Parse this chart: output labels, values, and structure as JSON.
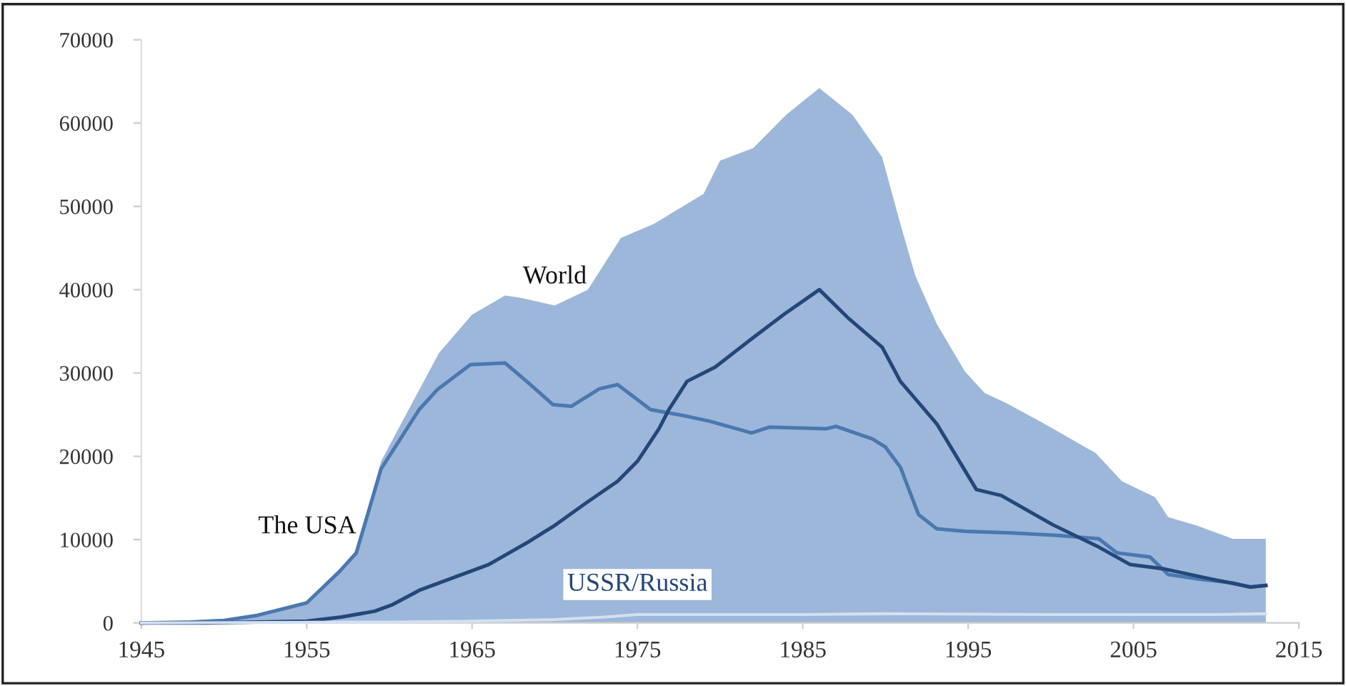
{
  "chart_data": {
    "type": "line",
    "xlim": [
      1945,
      2015
    ],
    "xticks": [
      1945,
      1955,
      1965,
      1975,
      1985,
      1995,
      2005,
      2015
    ],
    "ylim": [
      0,
      70000
    ],
    "yticks": [
      0,
      10000,
      20000,
      30000,
      40000,
      50000,
      60000,
      70000
    ],
    "grid": false,
    "legend": false,
    "marker": "none",
    "line_style": "solid",
    "series": [
      {
        "name": "World",
        "type": "area",
        "color": "#9db7da",
        "x": [
          1945,
          1948,
          1950,
          1952,
          1955,
          1957,
          1958,
          1959.5,
          1961,
          1963,
          1965,
          1967,
          1968,
          1970,
          1972,
          1974,
          1976,
          1978,
          1979,
          1980,
          1982,
          1984,
          1986,
          1988,
          1989.8,
          1990.9,
          1991.8,
          1993.1,
          1994.8,
          1996,
          1997.3,
          1999.8,
          2002.7,
          2004.3,
          2006.3,
          2007.1,
          2008.8,
          2011,
          2013
        ],
        "values": [
          0,
          100,
          300,
          900,
          2400,
          6200,
          8400,
          19400,
          25000,
          32400,
          37000,
          39300,
          39000,
          38100,
          40000,
          46200,
          47900,
          50300,
          51500,
          55500,
          57000,
          61000,
          64200,
          61000,
          55900,
          47900,
          41700,
          35900,
          30200,
          27600,
          26400,
          23700,
          20400,
          17000,
          15100,
          12700,
          11700,
          10100,
          10100
        ]
      },
      {
        "name": "The USA",
        "color": "#4a78b0",
        "x": [
          1945,
          1948,
          1950,
          1952,
          1955,
          1957,
          1958,
          1959.5,
          1961.8,
          1962.9,
          1964.9,
          1967,
          1968.3,
          1969.9,
          1971,
          1972.7,
          1973.8,
          1975.8,
          1978,
          1979.4,
          1981.9,
          1983,
          1986.4,
          1987,
          1989.2,
          1990,
          1990.9,
          1992,
          1993.1,
          1994.8,
          1997.6,
          2000.4,
          2002.9,
          2004,
          2006,
          2007.1,
          2008.8,
          2011,
          2012,
          2013
        ],
        "values": [
          0,
          100,
          300,
          900,
          2400,
          6200,
          8400,
          18500,
          25600,
          28000,
          31000,
          31200,
          29000,
          26200,
          26000,
          28100,
          28600,
          25600,
          24800,
          24200,
          22800,
          23500,
          23300,
          23600,
          22100,
          21100,
          18700,
          13000,
          11300,
          11000,
          10800,
          10500,
          10100,
          8400,
          7900,
          5800,
          5300,
          4800,
          4300,
          4500
        ]
      },
      {
        "name": "USSR/Russia",
        "color": "#24477a",
        "x": [
          1945,
          1949,
          1955,
          1957.1,
          1959.1,
          1960.2,
          1961.8,
          1966,
          1968.3,
          1970,
          1971.9,
          1973.8,
          1975,
          1976.3,
          1976.9,
          1978,
          1979.7,
          1981.9,
          1983.9,
          1986,
          1987.8,
          1989.8,
          1990.9,
          1993.1,
          1995.5,
          1997,
          2000.1,
          2002.9,
          2004.8,
          2006.8,
          2009.6,
          2012.1,
          2013
        ],
        "values": [
          0,
          0,
          200,
          700,
          1400,
          2200,
          3900,
          7000,
          9600,
          11700,
          14400,
          17000,
          19400,
          23300,
          25600,
          29000,
          30700,
          34100,
          37100,
          40000,
          36500,
          33100,
          29000,
          23900,
          16000,
          15300,
          11800,
          9100,
          7000,
          6500,
          5300,
          4300,
          4500
        ]
      },
      {
        "color": "#d3e0f2",
        "x": [
          1945,
          1960,
          1965,
          1970,
          1973,
          1975,
          1985,
          1990,
          2000,
          2010,
          2013
        ],
        "values": [
          0,
          100,
          200,
          400,
          700,
          1000,
          1000,
          1100,
          1000,
          1000,
          1100
        ]
      }
    ]
  }
}
